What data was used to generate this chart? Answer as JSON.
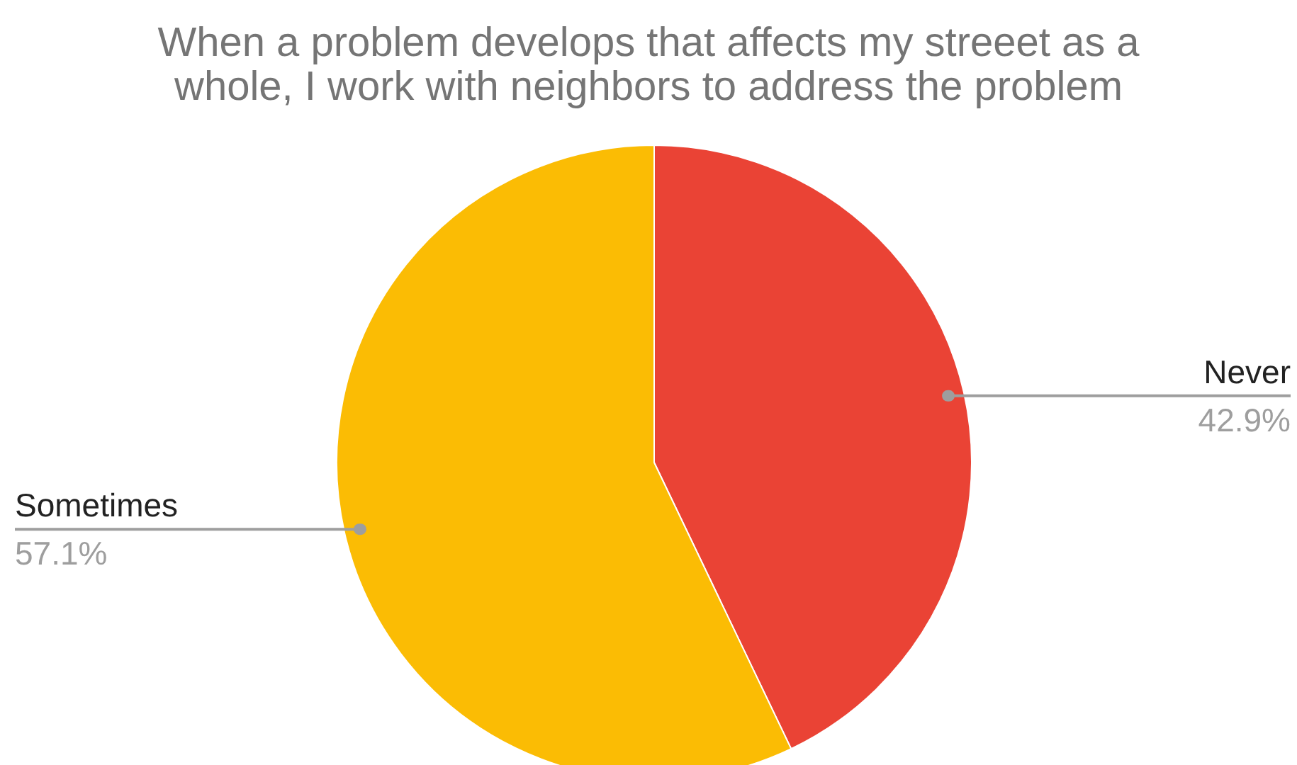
{
  "chart_data": {
    "type": "pie",
    "title": "When a problem develops that affects my streeet as a whole, I work with neighbors to address the problem",
    "categories": [
      "Never",
      "Sometimes"
    ],
    "values": [
      42.9,
      57.1
    ],
    "colors": [
      "#ea4335",
      "#fbbc04"
    ],
    "value_labels": [
      "42.9%",
      "57.1%"
    ]
  }
}
